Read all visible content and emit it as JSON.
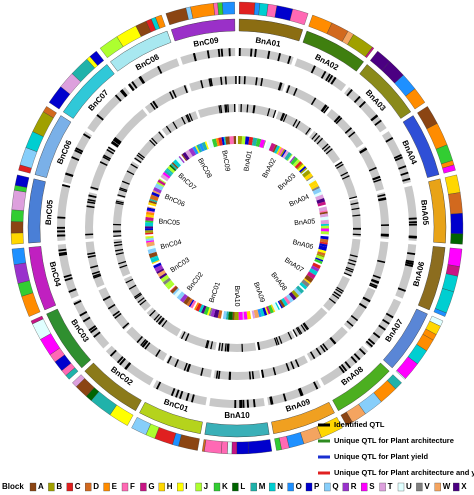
{
  "chromosomes": [
    "BnA01",
    "BnA02",
    "BnA03",
    "BnA04",
    "BnA05",
    "BnA06",
    "BnA07",
    "BnA08",
    "BnA09",
    "BnA10",
    "BnC01",
    "BnC02",
    "BnC03",
    "BnC04",
    "BnC05",
    "BnC06",
    "BnC07",
    "BnC08",
    "BnC09"
  ],
  "chromosome_colors": [
    "#8b6d12",
    "#3f7f0f",
    "#8a8a1a",
    "#2f4fd6",
    "#e8a317",
    "#8c6d1f",
    "#5a86d6",
    "#4caf20",
    "#f0a020",
    "#3ab0b8",
    "#b5d31c",
    "#8b7a1a",
    "#2f8f2f",
    "#c020c0",
    "#4a7fd6",
    "#7ab0e8",
    "#30c8d8",
    "#a8e8f0",
    "#9a30c8"
  ],
  "legend": [
    {
      "label": "Identified QTL",
      "color": "#000000"
    },
    {
      "label": "Unique QTL for Plant architecture",
      "color": "#2e8b20"
    },
    {
      "label": "Unique QTL for Plant yield",
      "color": "#1a2fd0"
    },
    {
      "label": "Unique QTL for Plant architecture and yield",
      "color": "#e02020"
    }
  ],
  "block_title": "Block",
  "blocks": [
    {
      "label": "A",
      "color": "#8b4513"
    },
    {
      "label": "B",
      "color": "#a0a000"
    },
    {
      "label": "C",
      "color": "#e02020"
    },
    {
      "label": "D",
      "color": "#d2691e"
    },
    {
      "label": "E",
      "color": "#ff8c00"
    },
    {
      "label": "F",
      "color": "#ff69b4"
    },
    {
      "label": "G",
      "color": "#c71585"
    },
    {
      "label": "H",
      "color": "#ffd700"
    },
    {
      "label": "I",
      "color": "#ffff00"
    },
    {
      "label": "J",
      "color": "#adff2f"
    },
    {
      "label": "K",
      "color": "#32cd32"
    },
    {
      "label": "L",
      "color": "#006400"
    },
    {
      "label": "M",
      "color": "#20b2aa"
    },
    {
      "label": "N",
      "color": "#00ced1"
    },
    {
      "label": "O",
      "color": "#1e90ff"
    },
    {
      "label": "P",
      "color": "#0000cd"
    },
    {
      "label": "Q",
      "color": "#87cefa"
    },
    {
      "label": "R",
      "color": "#9932cc"
    },
    {
      "label": "S",
      "color": "#ff00ff"
    },
    {
      "label": "T",
      "color": "#dda0dd"
    },
    {
      "label": "U",
      "color": "#e0ffff"
    },
    {
      "label": "V",
      "color": "#808080"
    },
    {
      "label": "W",
      "color": "#f4a460"
    },
    {
      "label": "X",
      "color": "#4b0082"
    }
  ]
}
